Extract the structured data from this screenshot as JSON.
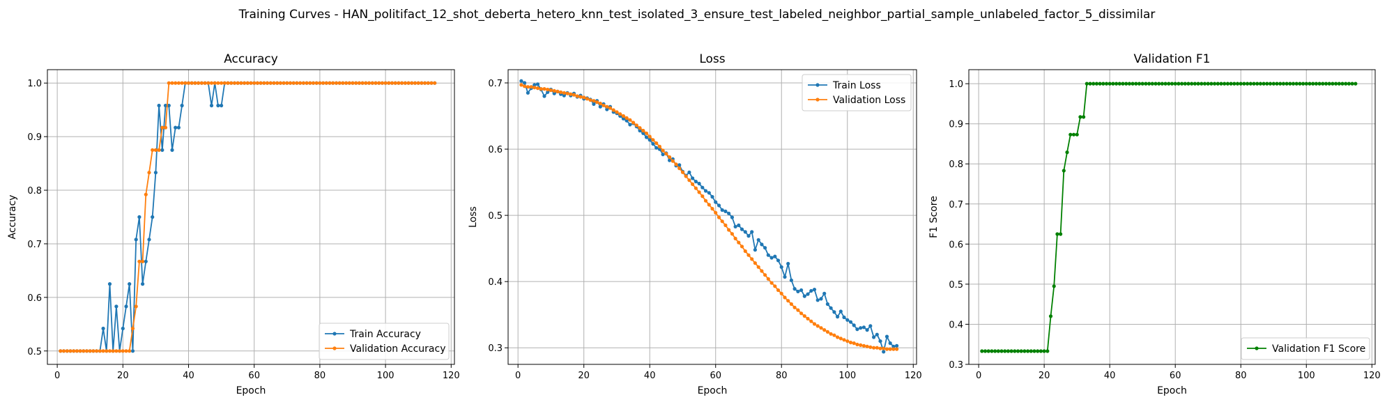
{
  "figure": {
    "suptitle": "Training Curves - HAN_politifact_12_shot_deberta_hetero_knn_test_isolated_3_ensure_test_labeled_neighbor_partial_sample_unlabeled_factor_5_dissimilar"
  },
  "colors": {
    "train": "#1f77b4",
    "validation": "#ff7f0e",
    "f1": "#008000",
    "grid": "#b0b0b0"
  },
  "chart_data": [
    {
      "type": "line",
      "title": "Accuracy",
      "xlabel": "Epoch",
      "ylabel": "Accuracy",
      "xlim": [
        -3,
        121
      ],
      "ylim": [
        0.475,
        1.025
      ],
      "xticks": [
        0,
        20,
        40,
        60,
        80,
        100,
        120
      ],
      "yticks": [
        0.5,
        0.6,
        0.7,
        0.8,
        0.9,
        1.0
      ],
      "ytick_labels": [
        "0.5",
        "0.6",
        "0.7",
        "0.8",
        "0.9",
        "1.0"
      ],
      "grid": true,
      "legend": "lower-right",
      "x": [
        1,
        2,
        3,
        4,
        5,
        6,
        7,
        8,
        9,
        10,
        11,
        12,
        13,
        14,
        15,
        16,
        17,
        18,
        19,
        20,
        21,
        22,
        23,
        24,
        25,
        26,
        27,
        28,
        29,
        30,
        31,
        32,
        33,
        34,
        35,
        36,
        37,
        38,
        39,
        40,
        41,
        42,
        43,
        44,
        45,
        46,
        47,
        48,
        49,
        50,
        51,
        52,
        53,
        54,
        55,
        56,
        57,
        58,
        59,
        60,
        61,
        62,
        63,
        64,
        65,
        66,
        67,
        68,
        69,
        70,
        71,
        72,
        73,
        74,
        75,
        76,
        77,
        78,
        79,
        80,
        81,
        82,
        83,
        84,
        85,
        86,
        87,
        88,
        89,
        90,
        91,
        92,
        93,
        94,
        95,
        96,
        97,
        98,
        99,
        100,
        101,
        102,
        103,
        104,
        105,
        106,
        107,
        108,
        109,
        110,
        111,
        112,
        113,
        114,
        115
      ],
      "series": [
        {
          "name": "Train Accuracy",
          "color": "#1f77b4",
          "values": [
            0.5,
            0.5,
            0.5,
            0.5,
            0.5,
            0.5,
            0.5,
            0.5,
            0.5,
            0.5,
            0.5,
            0.5,
            0.5,
            0.542,
            0.5,
            0.625,
            0.5,
            0.583,
            0.5,
            0.542,
            0.583,
            0.625,
            0.5,
            0.708,
            0.75,
            0.625,
            0.667,
            0.708,
            0.75,
            0.833,
            0.958,
            0.875,
            0.958,
            0.958,
            0.875,
            0.917,
            0.917,
            0.958,
            1.0,
            1.0,
            1.0,
            1.0,
            1.0,
            1.0,
            1.0,
            1.0,
            0.958,
            1.0,
            0.958,
            0.958,
            1.0,
            1.0,
            1.0,
            1.0,
            1.0,
            1.0,
            1.0,
            1.0,
            1.0,
            1.0,
            1.0,
            1.0,
            1.0,
            1.0,
            1.0,
            1.0,
            1.0,
            1.0,
            1.0,
            1.0,
            1.0,
            1.0,
            1.0,
            1.0,
            1.0,
            1.0,
            1.0,
            1.0,
            1.0,
            1.0,
            1.0,
            1.0,
            1.0,
            1.0,
            1.0,
            1.0,
            1.0,
            1.0,
            1.0,
            1.0,
            1.0,
            1.0,
            1.0,
            1.0,
            1.0,
            1.0,
            1.0,
            1.0,
            1.0,
            1.0,
            1.0,
            1.0,
            1.0,
            1.0,
            1.0,
            1.0,
            1.0,
            1.0,
            1.0,
            1.0,
            1.0,
            1.0,
            1.0,
            1.0,
            1.0
          ]
        },
        {
          "name": "Validation Accuracy",
          "color": "#ff7f0e",
          "values": [
            0.5,
            0.5,
            0.5,
            0.5,
            0.5,
            0.5,
            0.5,
            0.5,
            0.5,
            0.5,
            0.5,
            0.5,
            0.5,
            0.5,
            0.5,
            0.5,
            0.5,
            0.5,
            0.5,
            0.5,
            0.5,
            0.5,
            0.542,
            0.583,
            0.667,
            0.667,
            0.792,
            0.833,
            0.875,
            0.875,
            0.875,
            0.917,
            0.917,
            1.0,
            1.0,
            1.0,
            1.0,
            1.0,
            1.0,
            1.0,
            1.0,
            1.0,
            1.0,
            1.0,
            1.0,
            1.0,
            1.0,
            1.0,
            1.0,
            1.0,
            1.0,
            1.0,
            1.0,
            1.0,
            1.0,
            1.0,
            1.0,
            1.0,
            1.0,
            1.0,
            1.0,
            1.0,
            1.0,
            1.0,
            1.0,
            1.0,
            1.0,
            1.0,
            1.0,
            1.0,
            1.0,
            1.0,
            1.0,
            1.0,
            1.0,
            1.0,
            1.0,
            1.0,
            1.0,
            1.0,
            1.0,
            1.0,
            1.0,
            1.0,
            1.0,
            1.0,
            1.0,
            1.0,
            1.0,
            1.0,
            1.0,
            1.0,
            1.0,
            1.0,
            1.0,
            1.0,
            1.0,
            1.0,
            1.0,
            1.0,
            1.0,
            1.0,
            1.0,
            1.0,
            1.0,
            1.0,
            1.0,
            1.0,
            1.0,
            1.0,
            1.0,
            1.0,
            1.0,
            1.0,
            1.0
          ]
        }
      ]
    },
    {
      "type": "line",
      "title": "Loss",
      "xlabel": "Epoch",
      "ylabel": "Loss",
      "xlim": [
        -3,
        121
      ],
      "ylim": [
        0.275,
        0.72
      ],
      "xticks": [
        0,
        20,
        40,
        60,
        80,
        100,
        120
      ],
      "yticks": [
        0.3,
        0.4,
        0.5,
        0.6,
        0.7
      ],
      "ytick_labels": [
        "0.3",
        "0.4",
        "0.5",
        "0.6",
        "0.7"
      ],
      "grid": true,
      "legend": "upper-right",
      "x": [
        1,
        2,
        3,
        4,
        5,
        6,
        7,
        8,
        9,
        10,
        11,
        12,
        13,
        14,
        15,
        16,
        17,
        18,
        19,
        20,
        21,
        22,
        23,
        24,
        25,
        26,
        27,
        28,
        29,
        30,
        31,
        32,
        33,
        34,
        35,
        36,
        37,
        38,
        39,
        40,
        41,
        42,
        43,
        44,
        45,
        46,
        47,
        48,
        49,
        50,
        51,
        52,
        53,
        54,
        55,
        56,
        57,
        58,
        59,
        60,
        61,
        62,
        63,
        64,
        65,
        66,
        67,
        68,
        69,
        70,
        71,
        72,
        73,
        74,
        75,
        76,
        77,
        78,
        79,
        80,
        81,
        82,
        83,
        84,
        85,
        86,
        87,
        88,
        89,
        90,
        91,
        92,
        93,
        94,
        95,
        96,
        97,
        98,
        99,
        100,
        101,
        102,
        103,
        104,
        105,
        106,
        107,
        108,
        109,
        110,
        111,
        112,
        113,
        114,
        115
      ],
      "series": [
        {
          "name": "Train Loss",
          "color": "#1f77b4",
          "values": [
            0.703,
            0.7,
            0.685,
            0.692,
            0.697,
            0.698,
            0.69,
            0.68,
            0.686,
            0.69,
            0.684,
            0.687,
            0.683,
            0.681,
            0.685,
            0.681,
            0.684,
            0.679,
            0.681,
            0.676,
            0.677,
            0.675,
            0.668,
            0.673,
            0.664,
            0.668,
            0.66,
            0.664,
            0.656,
            0.654,
            0.65,
            0.646,
            0.643,
            0.637,
            0.639,
            0.634,
            0.628,
            0.624,
            0.618,
            0.614,
            0.608,
            0.602,
            0.6,
            0.592,
            0.594,
            0.583,
            0.585,
            0.575,
            0.576,
            0.566,
            0.56,
            0.565,
            0.556,
            0.551,
            0.548,
            0.542,
            0.537,
            0.534,
            0.528,
            0.52,
            0.515,
            0.508,
            0.506,
            0.503,
            0.497,
            0.483,
            0.485,
            0.479,
            0.475,
            0.469,
            0.475,
            0.448,
            0.463,
            0.456,
            0.451,
            0.44,
            0.436,
            0.438,
            0.432,
            0.422,
            0.407,
            0.427,
            0.402,
            0.389,
            0.385,
            0.387,
            0.378,
            0.381,
            0.386,
            0.388,
            0.372,
            0.374,
            0.382,
            0.366,
            0.36,
            0.354,
            0.347,
            0.355,
            0.346,
            0.342,
            0.339,
            0.334,
            0.328,
            0.33,
            0.331,
            0.327,
            0.333,
            0.316,
            0.32,
            0.31,
            0.294,
            0.317,
            0.307,
            0.302,
            0.303
          ]
        },
        {
          "name": "Validation Loss",
          "color": "#ff7f0e",
          "values": [
            0.697,
            0.695,
            0.694,
            0.694,
            0.693,
            0.692,
            0.691,
            0.691,
            0.69,
            0.689,
            0.688,
            0.687,
            0.686,
            0.685,
            0.684,
            0.683,
            0.682,
            0.68,
            0.679,
            0.678,
            0.676,
            0.674,
            0.673,
            0.671,
            0.669,
            0.666,
            0.664,
            0.662,
            0.659,
            0.656,
            0.653,
            0.65,
            0.647,
            0.644,
            0.64,
            0.636,
            0.632,
            0.628,
            0.624,
            0.619,
            0.614,
            0.609,
            0.604,
            0.598,
            0.593,
            0.588,
            0.582,
            0.577,
            0.571,
            0.565,
            0.559,
            0.553,
            0.547,
            0.541,
            0.535,
            0.529,
            0.522,
            0.516,
            0.51,
            0.504,
            0.497,
            0.491,
            0.485,
            0.478,
            0.472,
            0.465,
            0.459,
            0.453,
            0.446,
            0.44,
            0.434,
            0.428,
            0.422,
            0.416,
            0.41,
            0.404,
            0.398,
            0.393,
            0.387,
            0.382,
            0.376,
            0.371,
            0.366,
            0.361,
            0.357,
            0.352,
            0.348,
            0.344,
            0.34,
            0.336,
            0.333,
            0.33,
            0.327,
            0.324,
            0.321,
            0.319,
            0.316,
            0.314,
            0.312,
            0.31,
            0.308,
            0.307,
            0.305,
            0.304,
            0.303,
            0.302,
            0.301,
            0.3,
            0.3,
            0.299,
            0.299,
            0.298,
            0.298,
            0.298,
            0.298
          ]
        }
      ]
    },
    {
      "type": "line",
      "title": "Validation F1",
      "xlabel": "Epoch",
      "ylabel": "F1 Score",
      "xlim": [
        -3,
        121
      ],
      "ylim": [
        0.3,
        1.035
      ],
      "xticks": [
        0,
        20,
        40,
        60,
        80,
        100,
        120
      ],
      "yticks": [
        0.3,
        0.4,
        0.5,
        0.6,
        0.7,
        0.8,
        0.9,
        1.0
      ],
      "ytick_labels": [
        "0.3",
        "0.4",
        "0.5",
        "0.6",
        "0.7",
        "0.8",
        "0.9",
        "1.0"
      ],
      "grid": true,
      "legend": "lower-right",
      "x": [
        1,
        2,
        3,
        4,
        5,
        6,
        7,
        8,
        9,
        10,
        11,
        12,
        13,
        14,
        15,
        16,
        17,
        18,
        19,
        20,
        21,
        22,
        23,
        24,
        25,
        26,
        27,
        28,
        29,
        30,
        31,
        32,
        33,
        34,
        35,
        36,
        37,
        38,
        39,
        40,
        41,
        42,
        43,
        44,
        45,
        46,
        47,
        48,
        49,
        50,
        51,
        52,
        53,
        54,
        55,
        56,
        57,
        58,
        59,
        60,
        61,
        62,
        63,
        64,
        65,
        66,
        67,
        68,
        69,
        70,
        71,
        72,
        73,
        74,
        75,
        76,
        77,
        78,
        79,
        80,
        81,
        82,
        83,
        84,
        85,
        86,
        87,
        88,
        89,
        90,
        91,
        92,
        93,
        94,
        95,
        96,
        97,
        98,
        99,
        100,
        101,
        102,
        103,
        104,
        105,
        106,
        107,
        108,
        109,
        110,
        111,
        112,
        113,
        114,
        115
      ],
      "series": [
        {
          "name": "Validation F1 Score",
          "color": "#008000",
          "values": [
            0.333,
            0.333,
            0.333,
            0.333,
            0.333,
            0.333,
            0.333,
            0.333,
            0.333,
            0.333,
            0.333,
            0.333,
            0.333,
            0.333,
            0.333,
            0.333,
            0.333,
            0.333,
            0.333,
            0.333,
            0.333,
            0.42,
            0.495,
            0.625,
            0.625,
            0.783,
            0.829,
            0.873,
            0.873,
            0.873,
            0.917,
            0.917,
            1.0,
            1.0,
            1.0,
            1.0,
            1.0,
            1.0,
            1.0,
            1.0,
            1.0,
            1.0,
            1.0,
            1.0,
            1.0,
            1.0,
            1.0,
            1.0,
            1.0,
            1.0,
            1.0,
            1.0,
            1.0,
            1.0,
            1.0,
            1.0,
            1.0,
            1.0,
            1.0,
            1.0,
            1.0,
            1.0,
            1.0,
            1.0,
            1.0,
            1.0,
            1.0,
            1.0,
            1.0,
            1.0,
            1.0,
            1.0,
            1.0,
            1.0,
            1.0,
            1.0,
            1.0,
            1.0,
            1.0,
            1.0,
            1.0,
            1.0,
            1.0,
            1.0,
            1.0,
            1.0,
            1.0,
            1.0,
            1.0,
            1.0,
            1.0,
            1.0,
            1.0,
            1.0,
            1.0,
            1.0,
            1.0,
            1.0,
            1.0,
            1.0,
            1.0,
            1.0,
            1.0,
            1.0,
            1.0,
            1.0,
            1.0,
            1.0,
            1.0,
            1.0,
            1.0,
            1.0,
            1.0,
            1.0,
            1.0
          ]
        }
      ]
    }
  ]
}
